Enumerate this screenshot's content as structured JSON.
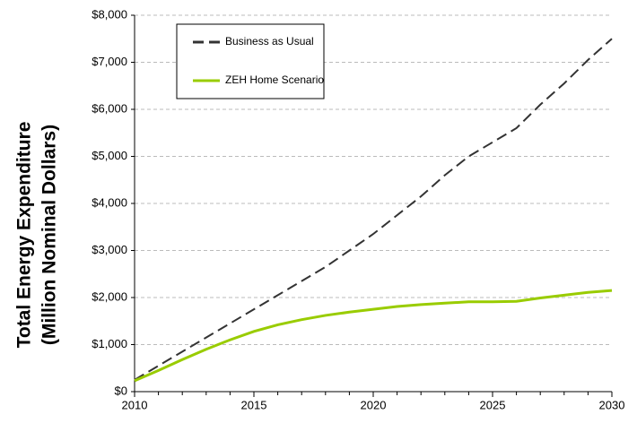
{
  "chart_data": {
    "type": "line",
    "y_label": [
      "Total Energy Expenditure",
      "(Million Nominal Dollars)"
    ],
    "x": [
      2010,
      2011,
      2012,
      2013,
      2014,
      2015,
      2016,
      2017,
      2018,
      2019,
      2020,
      2021,
      2022,
      2023,
      2024,
      2025,
      2026,
      2027,
      2028,
      2029,
      2030
    ],
    "series": [
      {
        "name": "Business as Usual",
        "color": "#333333",
        "dashed": true,
        "values": [
          250,
          550,
          850,
          1150,
          1450,
          1750,
          2050,
          2350,
          2650,
          3000,
          3350,
          3750,
          4150,
          4600,
          5000,
          5300,
          5600,
          6100,
          6550,
          7050,
          7500
        ]
      },
      {
        "name": "ZEH Home Scenario",
        "color": "#99cc00",
        "dashed": false,
        "values": [
          230,
          450,
          680,
          900,
          1100,
          1280,
          1420,
          1530,
          1620,
          1690,
          1750,
          1810,
          1850,
          1880,
          1910,
          1910,
          1920,
          1990,
          2050,
          2110,
          2150
        ]
      }
    ],
    "xlim": [
      2010,
      2030
    ],
    "xticks": [
      2010,
      2015,
      2020,
      2025,
      2030
    ],
    "ylim": [
      0,
      8000
    ],
    "yticks": [
      {
        "value": 0,
        "label": "$0"
      },
      {
        "value": 1000,
        "label": "$1,000"
      },
      {
        "value": 2000,
        "label": "$2,000"
      },
      {
        "value": 3000,
        "label": "$3,000"
      },
      {
        "value": 4000,
        "label": "$4,000"
      },
      {
        "value": 5000,
        "label": "$5,000"
      },
      {
        "value": 6000,
        "label": "$6,000"
      },
      {
        "value": 7000,
        "label": "$7,000"
      },
      {
        "value": 8000,
        "label": "$8,000"
      }
    ],
    "grid": true
  }
}
